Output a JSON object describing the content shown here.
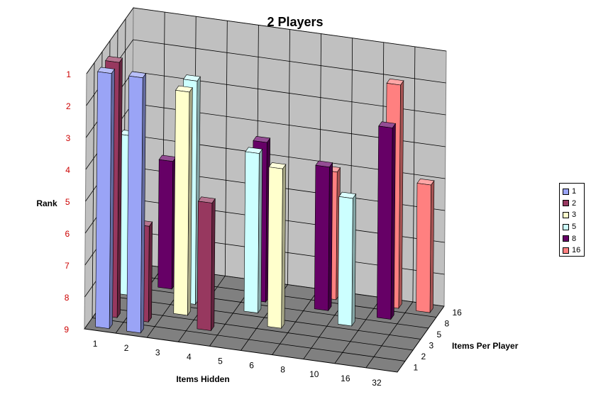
{
  "chart_data": {
    "type": "bar",
    "subtype": "3d-column",
    "title": "2 Players",
    "xlabel": "Items Hidden",
    "ylabel": "Items Per Player",
    "zlabel": "Rank",
    "categories": [
      "1",
      "2",
      "3",
      "4",
      "5",
      "6",
      "8",
      "10",
      "16",
      "32"
    ],
    "rank_ticks": [
      "1",
      "2",
      "3",
      "4",
      "5",
      "6",
      "7",
      "8",
      "9"
    ],
    "rank_range": [
      1,
      9
    ],
    "rank_axis_reversed": true,
    "depth_labels": [
      "1",
      "2",
      "3",
      "5",
      "8",
      "16"
    ],
    "series": [
      {
        "name": "1",
        "color": "#9aa4f6",
        "values": [
          1,
          1,
          null,
          null,
          null,
          null,
          null,
          null,
          null,
          null
        ]
      },
      {
        "name": "2",
        "color": "#97385f",
        "values": [
          1,
          6,
          null,
          5,
          null,
          null,
          null,
          null,
          null,
          null
        ]
      },
      {
        "name": "3",
        "color": "#ffffcc",
        "values": [
          null,
          null,
          2,
          null,
          null,
          4,
          null,
          null,
          null,
          null
        ]
      },
      {
        "name": "5",
        "color": "#ccffff",
        "values": [
          4,
          null,
          2,
          null,
          4,
          null,
          null,
          5,
          null,
          null
        ]
      },
      {
        "name": "8",
        "color": "#660066",
        "values": [
          null,
          5,
          null,
          null,
          4,
          null,
          4.5,
          null,
          3,
          null
        ]
      },
      {
        "name": "16",
        "color": "#ff8080",
        "values": [
          null,
          null,
          null,
          null,
          null,
          null,
          5,
          null,
          2,
          5
        ]
      }
    ],
    "grid": true,
    "legend_position": "right"
  }
}
